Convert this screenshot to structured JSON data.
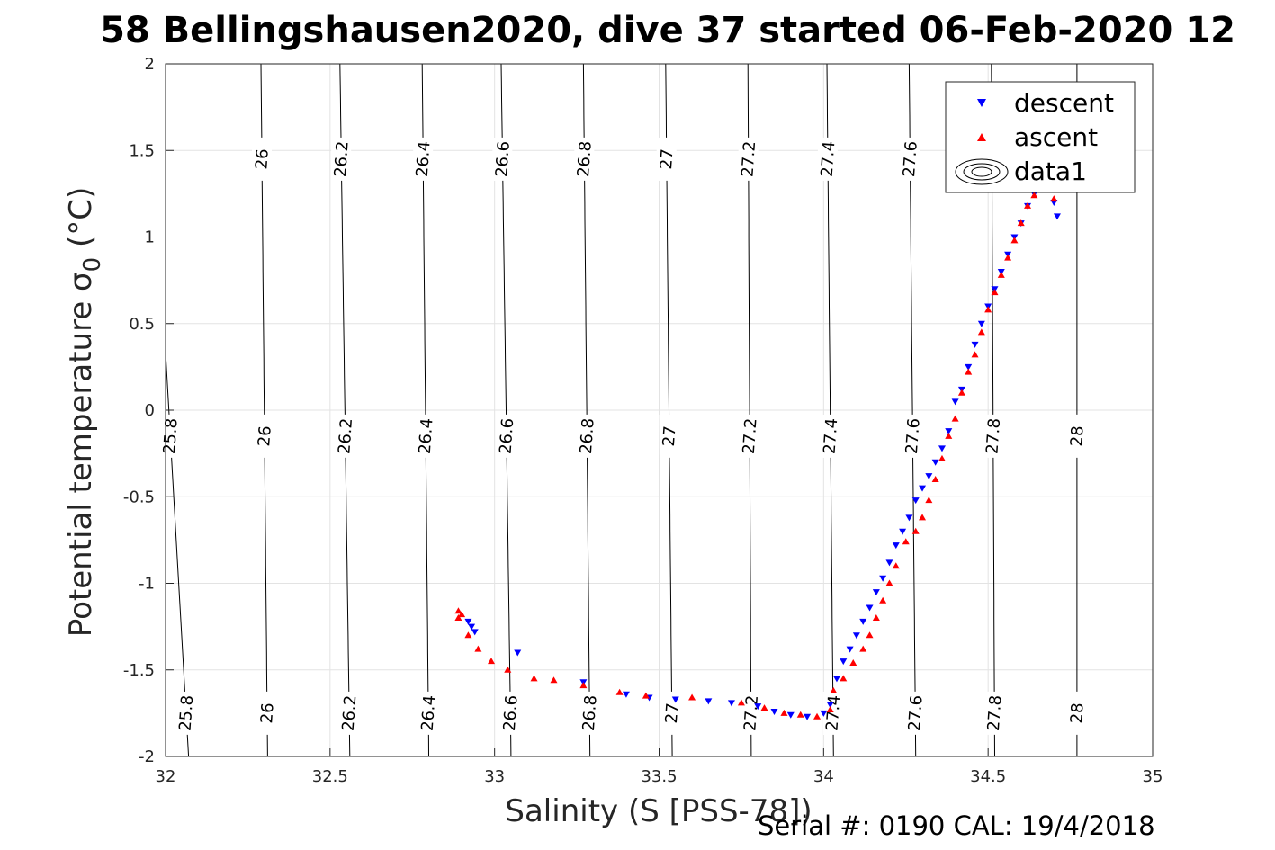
{
  "chart_data": {
    "type": "scatter",
    "title": "58 Bellingshausen2020, dive 37 started 06-Feb-2020 12",
    "xlabel": "Salinity (S [PSS-78])",
    "ylabel_main": "Potential temperature σ",
    "ylabel_sub": "0",
    "ylabel_unit": " (°C)",
    "xlim": [
      32,
      35
    ],
    "ylim": [
      -2,
      2
    ],
    "x_ticks": [
      32,
      32.5,
      33,
      33.5,
      34,
      34.5,
      35
    ],
    "x_tick_labels": [
      "32",
      "32.5",
      "33",
      "33.5",
      "34",
      "34.5",
      "35"
    ],
    "y_ticks": [
      -2,
      -1.5,
      -1,
      -0.5,
      0,
      0.5,
      1,
      1.5,
      2
    ],
    "y_tick_labels": [
      "-2",
      "-1.5",
      "-1",
      "-0.5",
      "0",
      "0.5",
      "1",
      "1.5",
      "2"
    ],
    "grid": true,
    "legend_position": "top-right",
    "legend_labels": [
      "descent",
      "ascent",
      "data1"
    ],
    "density_contours": {
      "levels": [
        25.8,
        26,
        26.2,
        26.4,
        26.6,
        26.8,
        27,
        27.2,
        27.4,
        27.6,
        27.8,
        28
      ],
      "level_labels": [
        "25.8",
        "26",
        "26.2",
        "26.4",
        "26.6",
        "26.8",
        "27",
        "27.2",
        "27.4",
        "27.6",
        "27.8",
        "28"
      ],
      "salinity_at_bottom": [
        32.07,
        32.31,
        32.56,
        32.8,
        33.05,
        33.29,
        33.54,
        33.78,
        34.03,
        34.28,
        34.52,
        34.77
      ],
      "salinity_at_top": [
        31.95,
        32.29,
        32.53,
        32.78,
        33.02,
        33.27,
        33.52,
        33.77,
        34.01,
        34.26,
        34.51,
        34.77
      ],
      "label_temperatures": [
        -1.75,
        -0.15,
        1.45
      ]
    },
    "series": [
      {
        "name": "descent",
        "color": "#0000ff",
        "marker": "triangle-down",
        "points": [
          [
            32.92,
            -1.22
          ],
          [
            32.93,
            -1.25
          ],
          [
            32.94,
            -1.28
          ],
          [
            33.07,
            -1.4
          ],
          [
            33.27,
            -1.57
          ],
          [
            33.4,
            -1.64
          ],
          [
            33.47,
            -1.66
          ],
          [
            33.55,
            -1.67
          ],
          [
            33.65,
            -1.68
          ],
          [
            33.72,
            -1.69
          ],
          [
            33.8,
            -1.71
          ],
          [
            33.85,
            -1.74
          ],
          [
            33.9,
            -1.76
          ],
          [
            33.95,
            -1.77
          ],
          [
            34.0,
            -1.75
          ],
          [
            34.02,
            -1.7
          ],
          [
            34.04,
            -1.55
          ],
          [
            34.06,
            -1.45
          ],
          [
            34.08,
            -1.38
          ],
          [
            34.1,
            -1.3
          ],
          [
            34.12,
            -1.22
          ],
          [
            34.14,
            -1.14
          ],
          [
            34.16,
            -1.05
          ],
          [
            34.18,
            -0.97
          ],
          [
            34.2,
            -0.88
          ],
          [
            34.22,
            -0.78
          ],
          [
            34.24,
            -0.7
          ],
          [
            34.26,
            -0.62
          ],
          [
            34.28,
            -0.52
          ],
          [
            34.3,
            -0.45
          ],
          [
            34.32,
            -0.38
          ],
          [
            34.34,
            -0.3
          ],
          [
            34.36,
            -0.22
          ],
          [
            34.38,
            -0.12
          ],
          [
            34.4,
            0.05
          ],
          [
            34.42,
            0.12
          ],
          [
            34.44,
            0.25
          ],
          [
            34.46,
            0.38
          ],
          [
            34.48,
            0.5
          ],
          [
            34.5,
            0.6
          ],
          [
            34.52,
            0.7
          ],
          [
            34.54,
            0.8
          ],
          [
            34.56,
            0.9
          ],
          [
            34.58,
            1.0
          ],
          [
            34.6,
            1.08
          ],
          [
            34.62,
            1.18
          ],
          [
            34.64,
            1.25
          ],
          [
            34.66,
            1.33
          ],
          [
            34.7,
            1.2
          ],
          [
            34.71,
            1.12
          ]
        ]
      },
      {
        "name": "ascent",
        "color": "#ff0000",
        "marker": "triangle-up",
        "points": [
          [
            32.89,
            -1.16
          ],
          [
            32.89,
            -1.2
          ],
          [
            32.9,
            -1.18
          ],
          [
            32.92,
            -1.3
          ],
          [
            32.95,
            -1.38
          ],
          [
            32.99,
            -1.45
          ],
          [
            33.04,
            -1.5
          ],
          [
            33.12,
            -1.55
          ],
          [
            33.18,
            -1.56
          ],
          [
            33.27,
            -1.59
          ],
          [
            33.38,
            -1.63
          ],
          [
            33.46,
            -1.65
          ],
          [
            33.6,
            -1.66
          ],
          [
            33.75,
            -1.69
          ],
          [
            33.82,
            -1.72
          ],
          [
            33.88,
            -1.75
          ],
          [
            33.93,
            -1.76
          ],
          [
            33.98,
            -1.77
          ],
          [
            34.02,
            -1.73
          ],
          [
            34.03,
            -1.62
          ],
          [
            34.06,
            -1.55
          ],
          [
            34.09,
            -1.46
          ],
          [
            34.12,
            -1.38
          ],
          [
            34.14,
            -1.3
          ],
          [
            34.16,
            -1.2
          ],
          [
            34.18,
            -1.1
          ],
          [
            34.2,
            -1.0
          ],
          [
            34.22,
            -0.9
          ],
          [
            34.25,
            -0.76
          ],
          [
            34.28,
            -0.7
          ],
          [
            34.3,
            -0.62
          ],
          [
            34.32,
            -0.52
          ],
          [
            34.34,
            -0.4
          ],
          [
            34.36,
            -0.28
          ],
          [
            34.38,
            -0.15
          ],
          [
            34.4,
            -0.05
          ],
          [
            34.42,
            0.1
          ],
          [
            34.44,
            0.22
          ],
          [
            34.46,
            0.32
          ],
          [
            34.48,
            0.45
          ],
          [
            34.5,
            0.58
          ],
          [
            34.52,
            0.68
          ],
          [
            34.54,
            0.78
          ],
          [
            34.56,
            0.88
          ],
          [
            34.58,
            0.98
          ],
          [
            34.6,
            1.08
          ],
          [
            34.62,
            1.18
          ],
          [
            34.64,
            1.24
          ],
          [
            34.66,
            1.3
          ],
          [
            34.7,
            1.22
          ]
        ]
      }
    ]
  },
  "footer": {
    "serial_text": "Serial #: 0190  CAL: 19/4/2018"
  }
}
